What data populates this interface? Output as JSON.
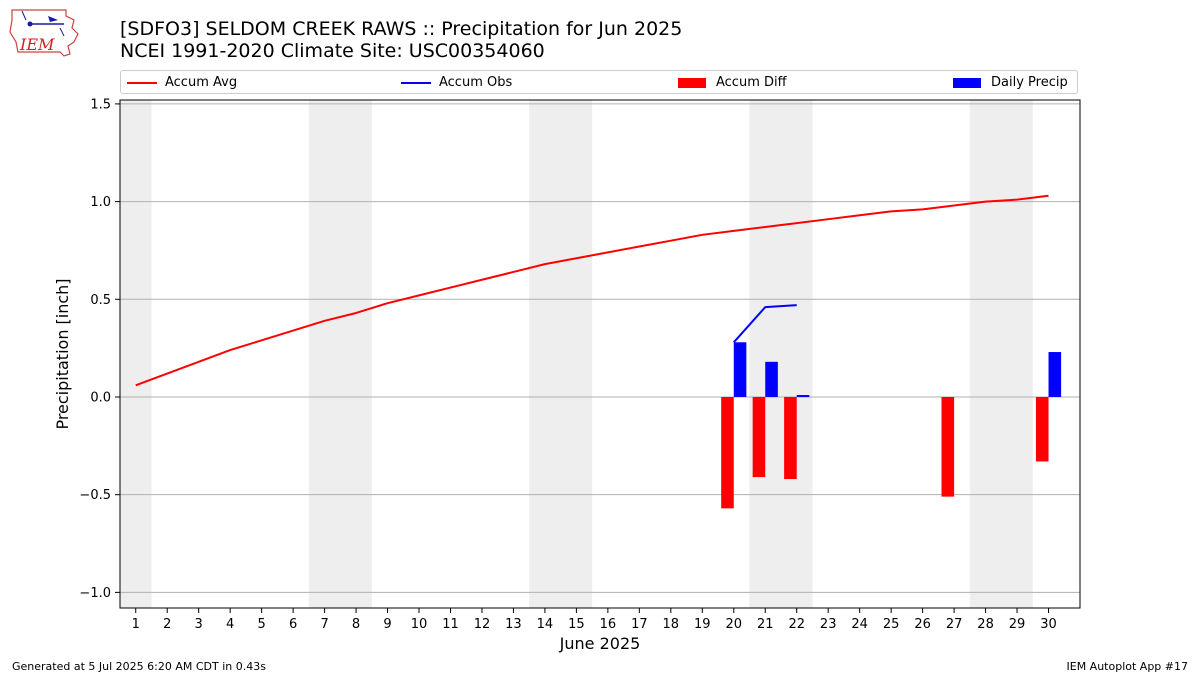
{
  "header": {
    "title_line1": "[SDFO3] SELDOM CREEK RAWS :: Precipitation for Jun 2025",
    "title_line2": "NCEI 1991-2020 Climate Site: USC00354060",
    "logo_text": "IEM"
  },
  "footer": {
    "left": "Generated at 5 Jul 2025 6:20 AM CDT in 0.43s",
    "right": "IEM Autoplot App #17"
  },
  "chart_data": {
    "type": "bar",
    "xlabel": "June 2025",
    "ylabel": "Precipitation [inch]",
    "xlim": [
      0.5,
      31.0
    ],
    "ylim": [
      -1.08,
      1.52
    ],
    "yticks": [
      -1.0,
      -0.5,
      0.0,
      0.5,
      1.0,
      1.5
    ],
    "ytick_labels": [
      "−1.0",
      "−0.5",
      "0.0",
      "0.5",
      "1.0",
      "1.5"
    ],
    "grid": "horizontal",
    "legend_position": "top",
    "weekend_shading": [
      [
        0.5,
        1.5
      ],
      [
        6.5,
        8.5
      ],
      [
        13.5,
        15.5
      ],
      [
        20.5,
        22.5
      ],
      [
        27.5,
        29.5
      ]
    ],
    "days": [
      1,
      2,
      3,
      4,
      5,
      6,
      7,
      8,
      9,
      10,
      11,
      12,
      13,
      14,
      15,
      16,
      17,
      18,
      19,
      20,
      21,
      22,
      23,
      24,
      25,
      26,
      27,
      28,
      29,
      30
    ],
    "series": [
      {
        "name": "Accum Avg",
        "kind": "line",
        "color": "#ff0000",
        "x": [
          1,
          2,
          3,
          4,
          5,
          6,
          7,
          8,
          9,
          10,
          11,
          12,
          13,
          14,
          15,
          16,
          17,
          18,
          19,
          20,
          21,
          22,
          23,
          24,
          25,
          26,
          27,
          28,
          29,
          30
        ],
        "values": [
          0.06,
          0.12,
          0.18,
          0.24,
          0.29,
          0.34,
          0.39,
          0.43,
          0.48,
          0.52,
          0.56,
          0.6,
          0.64,
          0.68,
          0.71,
          0.74,
          0.77,
          0.8,
          0.83,
          0.85,
          0.87,
          0.89,
          0.91,
          0.93,
          0.95,
          0.96,
          0.98,
          1.0,
          1.01,
          1.03
        ]
      },
      {
        "name": "Accum Obs",
        "kind": "line",
        "color": "#0000ff",
        "x": [
          20,
          21,
          22
        ],
        "values": [
          0.28,
          0.46,
          0.47
        ]
      },
      {
        "name": "Accum Diff",
        "kind": "bar",
        "color": "#ff0000",
        "x": [
          20,
          21,
          22,
          27,
          30
        ],
        "values": [
          -0.57,
          -0.41,
          -0.42,
          -0.51,
          -0.33
        ]
      },
      {
        "name": "Daily Precip",
        "kind": "bar",
        "color": "#0000ff",
        "x": [
          20,
          21,
          22,
          30
        ],
        "values": [
          0.28,
          0.18,
          0.01,
          0.23
        ]
      }
    ]
  }
}
